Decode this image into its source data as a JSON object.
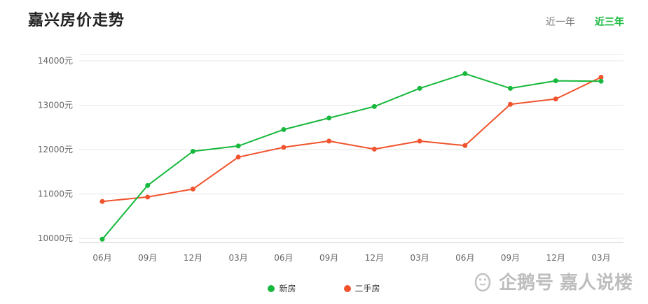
{
  "header": {
    "title": "嘉兴房价走势",
    "tabs": [
      {
        "label": "近一年",
        "active": false
      },
      {
        "label": "近三年",
        "active": true
      }
    ]
  },
  "chart_data": {
    "type": "line",
    "title": "嘉兴房价走势",
    "categories": [
      "06月",
      "09月",
      "12月",
      "03月",
      "06月",
      "09月",
      "12月",
      "03月",
      "06月",
      "09月",
      "12月",
      "03月"
    ],
    "y_ticks": [
      "10000元",
      "11000元",
      "12000元",
      "13000元",
      "14000元"
    ],
    "ylim": [
      10000,
      14000
    ],
    "grid": true,
    "legend_position": "bottom-center",
    "series": [
      {
        "name": "新房",
        "color": "#17b83c",
        "values": [
          9980,
          11190,
          11960,
          12080,
          12450,
          12710,
          12970,
          13380,
          13710,
          13380,
          13550,
          13540
        ]
      },
      {
        "name": "二手房",
        "color": "#f0532d",
        "values": [
          10830,
          10930,
          11110,
          11830,
          12050,
          12190,
          12010,
          12190,
          12090,
          13020,
          13140,
          13630
        ]
      }
    ]
  },
  "watermark": {
    "icon": "penguin-icon",
    "text": "企鹅号 嘉人说楼"
  }
}
